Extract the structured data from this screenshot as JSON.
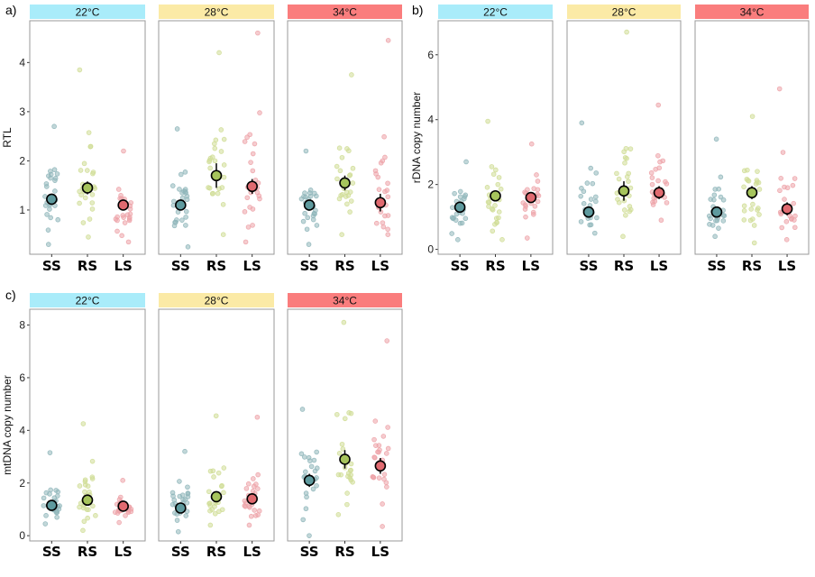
{
  "colors": {
    "strip_22": "#a9ecfa",
    "strip_28": "#fbeaa6",
    "strip_34": "#fa7d7d",
    "SS": "#5e9a9e",
    "RS": "#a6c45c",
    "LS": "#e06a70",
    "points_SS": "#8fb6ba",
    "points_RS": "#cfdd95",
    "points_LS": "#eda3a8"
  },
  "chart_data": [
    {
      "panel_letter": "a)",
      "type": "scatter",
      "ylabel": "RTL",
      "ylim": [
        0.1,
        4.85
      ],
      "yticks": [
        1,
        2,
        3,
        4
      ],
      "categories": [
        "SS",
        "RS",
        "LS"
      ],
      "facets": [
        {
          "label": "22°C",
          "means": {
            "SS": 1.22,
            "RS": 1.45,
            "LS": 1.1
          },
          "se": {
            "SS": 0.1,
            "RS": 0.13,
            "LS": 0.1
          },
          "spread": {
            "SS": [
              0.3,
              2.7
            ],
            "RS": [
              0.45,
              3.85
            ],
            "LS": [
              0.35,
              2.2
            ]
          }
        },
        {
          "label": "28°C",
          "means": {
            "SS": 1.1,
            "RS": 1.7,
            "LS": 1.48
          },
          "se": {
            "SS": 0.1,
            "RS": 0.25,
            "LS": 0.15
          },
          "spread": {
            "SS": [
              0.25,
              2.65
            ],
            "RS": [
              0.5,
              4.2
            ],
            "LS": [
              0.35,
              4.6
            ]
          }
        },
        {
          "label": "34°C",
          "means": {
            "SS": 1.1,
            "RS": 1.55,
            "LS": 1.15
          },
          "se": {
            "SS": 0.08,
            "RS": 0.15,
            "LS": 0.18
          },
          "spread": {
            "SS": [
              0.3,
              2.2
            ],
            "RS": [
              0.5,
              3.75
            ],
            "LS": [
              0.5,
              4.45
            ]
          }
        }
      ]
    },
    {
      "panel_letter": "b)",
      "type": "scatter",
      "ylabel": "rDNA copy number",
      "ylim": [
        -0.15,
        7.05
      ],
      "yticks": [
        0,
        2,
        4,
        6
      ],
      "categories": [
        "SS",
        "RS",
        "LS"
      ],
      "facets": [
        {
          "label": "22°C",
          "means": {
            "SS": 1.3,
            "RS": 1.65,
            "LS": 1.6
          },
          "se": {
            "SS": 0.12,
            "RS": 0.15,
            "LS": 0.15
          },
          "spread": {
            "SS": [
              0.3,
              2.7
            ],
            "RS": [
              0.3,
              3.95
            ],
            "LS": [
              0.35,
              3.25
            ]
          }
        },
        {
          "label": "28°C",
          "means": {
            "SS": 1.15,
            "RS": 1.8,
            "LS": 1.75
          },
          "se": {
            "SS": 0.1,
            "RS": 0.3,
            "LS": 0.2
          },
          "spread": {
            "SS": [
              0.5,
              3.9
            ],
            "RS": [
              0.4,
              6.7
            ],
            "LS": [
              0.9,
              4.45
            ]
          }
        },
        {
          "label": "34°C",
          "means": {
            "SS": 1.15,
            "RS": 1.75,
            "LS": 1.25
          },
          "se": {
            "SS": 0.12,
            "RS": 0.2,
            "LS": 0.2
          },
          "spread": {
            "SS": [
              0.4,
              3.4
            ],
            "RS": [
              0.2,
              4.1
            ],
            "LS": [
              0.3,
              4.95
            ]
          }
        }
      ]
    },
    {
      "panel_letter": "c)",
      "type": "scatter",
      "ylabel": "mtDNA copy number",
      "ylim": [
        -0.2,
        8.6
      ],
      "yticks": [
        0,
        2,
        4,
        6,
        8
      ],
      "categories": [
        "SS",
        "RS",
        "LS"
      ],
      "facets": [
        {
          "label": "22°C",
          "means": {
            "SS": 1.15,
            "RS": 1.35,
            "LS": 1.12
          },
          "se": {
            "SS": 0.1,
            "RS": 0.12,
            "LS": 0.12
          },
          "spread": {
            "SS": [
              0.45,
              3.15
            ],
            "RS": [
              0.2,
              4.25
            ],
            "LS": [
              0.5,
              2.1
            ]
          }
        },
        {
          "label": "28°C",
          "means": {
            "SS": 1.05,
            "RS": 1.48,
            "LS": 1.4
          },
          "se": {
            "SS": 0.15,
            "RS": 0.12,
            "LS": 0.12
          },
          "spread": {
            "SS": [
              0.15,
              3.2
            ],
            "RS": [
              0.4,
              4.55
            ],
            "LS": [
              0.4,
              4.5
            ]
          }
        },
        {
          "label": "34°C",
          "means": {
            "SS": 2.1,
            "RS": 2.9,
            "LS": 2.65
          },
          "se": {
            "SS": 0.25,
            "RS": 0.35,
            "LS": 0.3
          },
          "spread": {
            "SS": [
              0.0,
              4.8
            ],
            "RS": [
              0.8,
              8.1
            ],
            "LS": [
              0.35,
              7.4
            ]
          }
        }
      ]
    }
  ]
}
